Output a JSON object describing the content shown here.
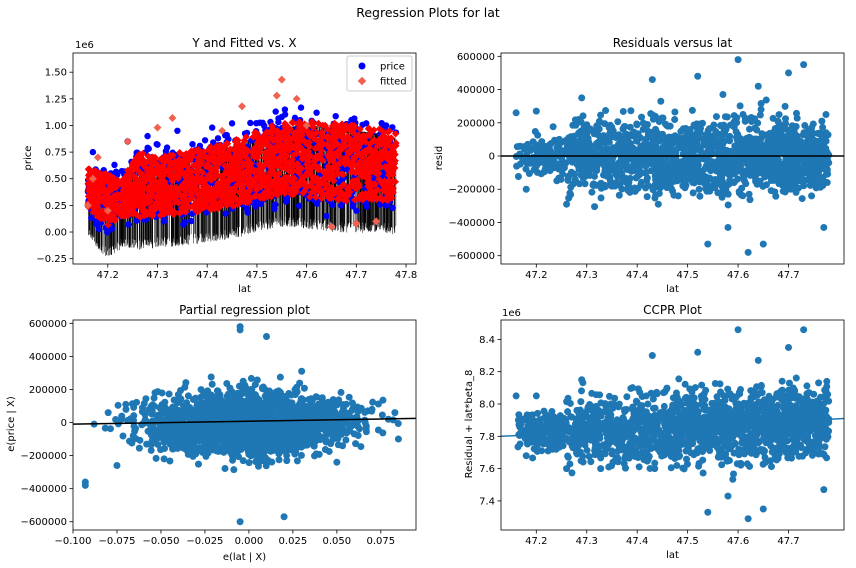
{
  "figure": {
    "title": "Regression Plots for lat"
  },
  "colors": {
    "blue": "#1f77b4",
    "scatter_blue": "#0000ff",
    "fitted_red": "#ff0000",
    "fitted_marker": "#f0614f",
    "line_black": "#000000"
  },
  "chart_data": [
    {
      "type": "scatter",
      "title": "Y and Fitted vs. X",
      "xlabel": "lat",
      "ylabel": "price",
      "offset_text": "1e6",
      "xlim": [
        47.13,
        47.82
      ],
      "ylim": [
        -0.3,
        1.68
      ],
      "xticks": [
        47.2,
        47.3,
        47.4,
        47.5,
        47.6,
        47.7,
        47.8
      ],
      "xtick_labels": [
        "47.2",
        "47.3",
        "47.4",
        "47.5",
        "47.6",
        "47.7",
        "47.8"
      ],
      "yticks": [
        -0.25,
        0.0,
        0.25,
        0.5,
        0.75,
        1.0,
        1.25,
        1.5
      ],
      "ytick_labels": [
        "−0.25",
        "0.00",
        "0.25",
        "0.50",
        "0.75",
        "1.00",
        "1.25",
        "1.50"
      ],
      "legend": {
        "placement": "top-right",
        "entries": [
          "price",
          "fitted"
        ]
      },
      "series": [
        {
          "name": "price",
          "marker": "circle",
          "color": "#0000ff",
          "points": [
            [
              47.16,
              0.38
            ],
            [
              47.17,
              0.75
            ],
            [
              47.24,
              0.85
            ],
            [
              47.25,
              0.62
            ],
            [
              47.28,
              0.9
            ],
            [
              47.3,
              0.82
            ],
            [
              47.34,
              0.95
            ],
            [
              47.38,
              0.74
            ],
            [
              47.41,
              0.98
            ],
            [
              47.45,
              1.02
            ],
            [
              47.48,
              0.93
            ],
            [
              47.52,
              0.9
            ],
            [
              47.55,
              1.08
            ],
            [
              47.58,
              1.04
            ],
            [
              47.62,
              1.12
            ],
            [
              47.66,
              0.96
            ],
            [
              47.69,
              1.05
            ],
            [
              47.72,
              1.02
            ],
            [
              47.76,
              1.0
            ],
            [
              47.2,
              0.3
            ],
            [
              47.33,
              0.18
            ],
            [
              47.45,
              0.22
            ],
            [
              47.56,
              0.3
            ],
            [
              47.64,
              0.15
            ],
            [
              47.7,
              0.2
            ],
            [
              47.76,
              0.25
            ]
          ]
        },
        {
          "name": "fitted",
          "marker": "diamond",
          "color": "#f0614f",
          "points": [
            [
              47.16,
              0.25
            ],
            [
              47.17,
              0.5
            ],
            [
              47.18,
              0.7
            ],
            [
              47.24,
              0.85
            ],
            [
              47.2,
              0.2
            ],
            [
              47.3,
              0.98
            ],
            [
              47.33,
              1.07
            ],
            [
              47.43,
              0.95
            ],
            [
              47.47,
              1.18
            ],
            [
              47.54,
              1.28
            ],
            [
              47.55,
              1.43
            ],
            [
              47.58,
              1.25
            ],
            [
              47.6,
              1.0
            ],
            [
              47.65,
              0.05
            ],
            [
              47.7,
              0.08
            ],
            [
              47.74,
              0.1
            ]
          ]
        }
      ],
      "band": {
        "description_values": "fitted band (data units)",
        "x": [
          47.16,
          47.2,
          47.23,
          47.26,
          47.3,
          47.35,
          47.4,
          47.45,
          47.5,
          47.55,
          47.6,
          47.65,
          47.7,
          47.75,
          47.78
        ],
        "low": [
          0.18,
          0.0,
          0.1,
          0.08,
          0.1,
          0.12,
          0.15,
          0.18,
          0.25,
          0.3,
          0.28,
          0.25,
          0.24,
          0.25,
          0.22
        ],
        "high": [
          0.65,
          0.6,
          0.55,
          0.8,
          0.75,
          0.8,
          0.85,
          0.9,
          1.0,
          1.08,
          1.1,
          1.08,
          1.05,
          1.02,
          0.98
        ]
      }
    },
    {
      "type": "scatter",
      "title": "Residuals versus lat",
      "xlabel": "lat",
      "ylabel": "resid",
      "xlim": [
        47.13,
        47.81
      ],
      "ylim": [
        -650000,
        620000
      ],
      "xticks": [
        47.2,
        47.3,
        47.4,
        47.5,
        47.6,
        47.7
      ],
      "xtick_labels": [
        "47.2",
        "47.3",
        "47.4",
        "47.5",
        "47.6",
        "47.7"
      ],
      "yticks": [
        -600000,
        -400000,
        -200000,
        0,
        200000,
        400000,
        600000
      ],
      "ytick_labels": [
        "−600000",
        "−400000",
        "−200000",
        "0",
        "200000",
        "400000",
        "600000"
      ],
      "hline": 0,
      "outliers": [
        [
          47.16,
          260000
        ],
        [
          47.2,
          270000
        ],
        [
          47.29,
          350000
        ],
        [
          47.43,
          460000
        ],
        [
          47.52,
          480000
        ],
        [
          47.57,
          370000
        ],
        [
          47.6,
          580000
        ],
        [
          47.64,
          420000
        ],
        [
          47.7,
          500000
        ],
        [
          47.73,
          550000
        ],
        [
          47.54,
          -530000
        ],
        [
          47.62,
          -580000
        ],
        [
          47.65,
          -530000
        ],
        [
          47.58,
          -430000
        ],
        [
          47.77,
          -430000
        ],
        [
          47.26,
          -290000
        ],
        [
          47.18,
          -200000
        ]
      ]
    },
    {
      "type": "scatter",
      "title": "Partial regression plot",
      "xlabel": "e(lat | X)",
      "ylabel": "e(price | X)",
      "xlim": [
        -0.1,
        0.095
      ],
      "ylim": [
        -650000,
        620000
      ],
      "xticks": [
        -0.1,
        -0.075,
        -0.05,
        -0.025,
        0.0,
        0.025,
        0.05,
        0.075
      ],
      "xtick_labels": [
        "−0.100",
        "−0.075",
        "−0.050",
        "−0.025",
        "0.000",
        "0.025",
        "0.050",
        "0.075"
      ],
      "yticks": [
        -600000,
        -400000,
        -200000,
        0,
        200000,
        400000,
        600000
      ],
      "ytick_labels": [
        "−600000",
        "−400000",
        "−200000",
        "0",
        "200000",
        "400000",
        "600000"
      ],
      "fit_line": {
        "x": [
          -0.1,
          0.095
        ],
        "y": [
          -10000,
          25000
        ]
      },
      "outliers": [
        [
          -0.093,
          -360000
        ],
        [
          -0.093,
          -380000
        ],
        [
          -0.088,
          -10000
        ],
        [
          -0.08,
          60000
        ],
        [
          -0.07,
          110000
        ],
        [
          -0.075,
          -260000
        ],
        [
          -0.005,
          580000
        ],
        [
          -0.005,
          560000
        ],
        [
          0.01,
          520000
        ],
        [
          0.03,
          310000
        ],
        [
          0.02,
          -570000
        ],
        [
          -0.005,
          -600000
        ],
        [
          0.05,
          -240000
        ],
        [
          0.07,
          80000
        ],
        [
          0.083,
          60000
        ],
        [
          0.085,
          -100000
        ]
      ]
    },
    {
      "type": "scatter",
      "title": "CCPR Plot",
      "xlabel": "lat",
      "ylabel": "Residual + lat*beta_8",
      "offset_text": "1e6",
      "xlim": [
        47.13,
        47.81
      ],
      "ylim": [
        7.22,
        8.52
      ],
      "xticks": [
        47.2,
        47.3,
        47.4,
        47.5,
        47.6,
        47.7
      ],
      "xtick_labels": [
        "47.2",
        "47.3",
        "47.4",
        "47.5",
        "47.6",
        "47.7"
      ],
      "yticks": [
        7.4,
        7.6,
        7.8,
        8.0,
        8.2,
        8.4
      ],
      "ytick_labels": [
        "7.4",
        "7.6",
        "7.8",
        "8.0",
        "8.2",
        "8.4"
      ],
      "fit_line": {
        "x": [
          47.13,
          47.81
        ],
        "y": [
          7.8,
          7.91
        ]
      },
      "outliers": [
        [
          47.16,
          8.05
        ],
        [
          47.2,
          8.05
        ],
        [
          47.29,
          8.15
        ],
        [
          47.43,
          8.3
        ],
        [
          47.52,
          8.32
        ],
        [
          47.6,
          8.46
        ],
        [
          47.64,
          8.27
        ],
        [
          47.7,
          8.35
        ],
        [
          47.73,
          8.46
        ],
        [
          47.54,
          7.33
        ],
        [
          47.62,
          7.29
        ],
        [
          47.65,
          7.35
        ],
        [
          47.58,
          7.43
        ],
        [
          47.77,
          7.47
        ],
        [
          47.26,
          7.6
        ],
        [
          47.18,
          7.68
        ]
      ]
    }
  ]
}
